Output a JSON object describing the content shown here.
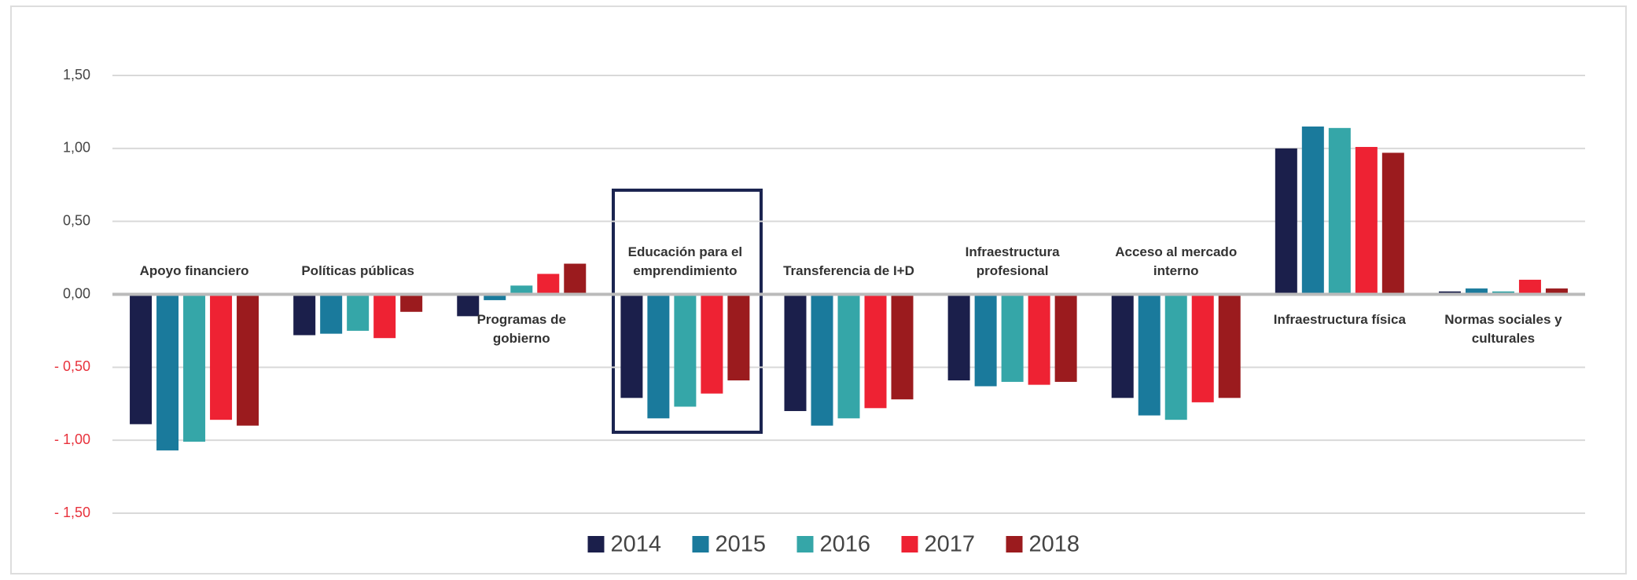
{
  "chart_data": {
    "type": "bar",
    "categories": [
      "Apoyo financiero",
      "Políticas públicas",
      "Programas de\ngobierno",
      "Educación para el\nemprendimiento",
      "Transferencia de I+D",
      "Infraestructura\nprofesional",
      "Acceso al mercado\ninterno",
      "Infraestructura física",
      "Normas sociales y\nculturales"
    ],
    "series": [
      {
        "name": "2014",
        "color": "#1b1f4b",
        "values": [
          -0.89,
          -0.28,
          -0.15,
          -0.71,
          -0.8,
          -0.59,
          -0.71,
          1.0,
          0.02
        ]
      },
      {
        "name": "2015",
        "color": "#1a7a9c",
        "values": [
          -1.07,
          -0.27,
          -0.04,
          -0.85,
          -0.9,
          -0.63,
          -0.83,
          1.15,
          0.04
        ]
      },
      {
        "name": "2016",
        "color": "#35a6a8",
        "values": [
          -1.01,
          -0.25,
          0.06,
          -0.77,
          -0.85,
          -0.6,
          -0.86,
          1.14,
          0.02
        ]
      },
      {
        "name": "2017",
        "color": "#ee2233",
        "values": [
          -0.86,
          -0.3,
          0.14,
          -0.68,
          -0.78,
          -0.62,
          -0.74,
          1.01,
          0.1
        ]
      },
      {
        "name": "2018",
        "color": "#9b1b1e",
        "values": [
          -0.9,
          -0.12,
          0.21,
          -0.59,
          -0.72,
          -0.6,
          -0.71,
          0.97,
          0.04
        ]
      }
    ],
    "ylim": [
      -1.5,
      1.5
    ],
    "yticks": [
      {
        "value": 1.5,
        "label": "1,50"
      },
      {
        "value": 1.0,
        "label": "1,00"
      },
      {
        "value": 0.5,
        "label": "0,50"
      },
      {
        "value": 0,
        "label": "0,00"
      },
      {
        "value": -0.5,
        "label": "- 0,50"
      },
      {
        "value": -1.0,
        "label": "- 1,00"
      },
      {
        "value": -1.5,
        "label": "- 1,50"
      }
    ],
    "grid": true,
    "legend": "bottom"
  }
}
